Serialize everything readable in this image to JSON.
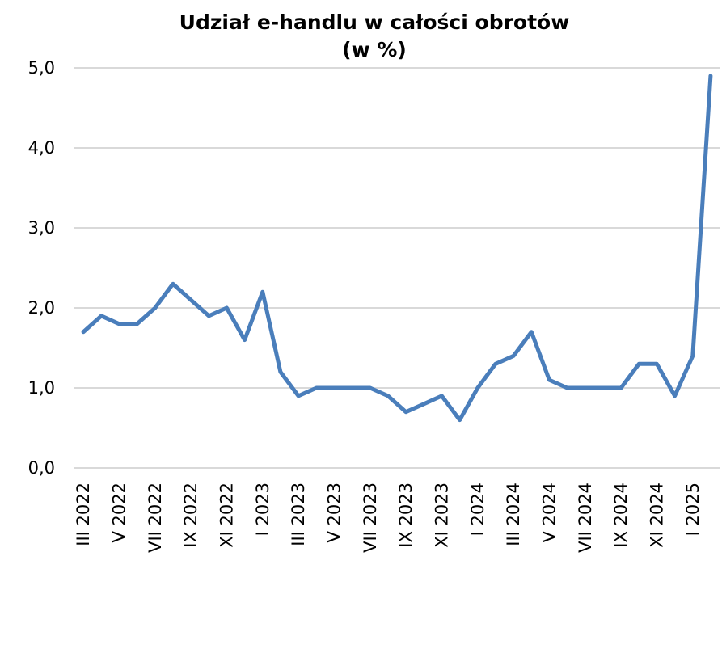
{
  "chart_data": {
    "type": "line",
    "title": [
      "Udział e-handlu w całości obrotów",
      "(w %)"
    ],
    "categories": [
      "III 2022",
      null,
      "V 2022",
      null,
      "VII 2022",
      null,
      "IX 2022",
      null,
      "XI 2022",
      null,
      "I 2023",
      null,
      "III 2023",
      null,
      "V 2023",
      null,
      "VII 2023",
      null,
      "IX 2023",
      null,
      "XI 2023",
      null,
      "I 2024",
      null,
      "III 2024",
      null,
      "V 2024",
      null,
      "VII 2024",
      null,
      "IX 2024",
      null,
      "XI 2024",
      null,
      "I 2025",
      null
    ],
    "values": [
      1.7,
      1.9,
      1.8,
      1.8,
      2.0,
      2.3,
      2.1,
      1.9,
      2.0,
      1.6,
      2.2,
      1.2,
      0.9,
      1.0,
      1.0,
      1.0,
      1.0,
      0.9,
      0.7,
      0.8,
      0.9,
      0.6,
      1.0,
      1.3,
      1.4,
      1.7,
      1.1,
      1.0,
      1.0,
      1.0,
      1.0,
      1.3,
      1.3,
      0.9,
      1.4,
      4.9
    ],
    "color": "#4a7ebb",
    "ylim": [
      0,
      5
    ],
    "yticks": [
      {
        "value": 0,
        "label": "0,0"
      },
      {
        "value": 1,
        "label": "1,0"
      },
      {
        "value": 2,
        "label": "2,0"
      },
      {
        "value": 3,
        "label": "3,0"
      },
      {
        "value": 4,
        "label": "4,0"
      },
      {
        "value": 5,
        "label": "5,0"
      }
    ],
    "grid": true
  }
}
